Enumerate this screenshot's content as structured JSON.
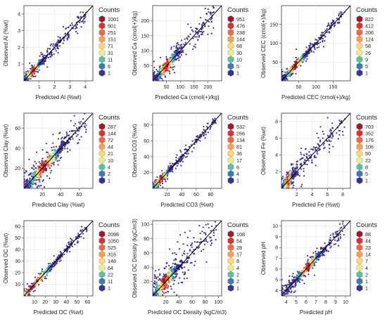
{
  "legend_title": "Counts",
  "colors": {
    "1": "#3d3290",
    "2": "#3a4fa6",
    "3": "#3b7bb7",
    "4": "#37a0b8",
    "5": "#5cc0a4",
    "6": "#a3d98c",
    "7": "#e6ee8e",
    "8": "#fbd96e",
    "9": "#f9a054",
    "10": "#ee6a43",
    "11": "#d8342f",
    "12": "#a5162e"
  },
  "chart_data": [
    {
      "type": "scatter",
      "xlabel": "Predicted Al (%wt)",
      "ylabel": "Observed Al (%wt)",
      "xlim": [
        0,
        4.5
      ],
      "ylim": [
        0,
        4.5
      ],
      "xticks": [
        "1",
        "2",
        "3",
        "4"
      ],
      "yticks": [
        "1",
        "2",
        "3",
        "4"
      ],
      "legend_counts": [
        "1001",
        "501",
        "251",
        "151",
        "71",
        "31",
        "11",
        "6",
        "1"
      ],
      "scatter_spread": 0.22,
      "cluster_center": 0.6,
      "cluster_width": 1.0
    },
    {
      "type": "scatter",
      "xlabel": "Predicted Ca (cmol(+)/kg)",
      "ylabel": "Observed Ca (cmol(+)/kg)",
      "xlim": [
        0,
        250
      ],
      "ylim": [
        0,
        250
      ],
      "xticks": [
        "50",
        "100",
        "150",
        "200"
      ],
      "yticks": [
        "50",
        "100",
        "150",
        "200"
      ],
      "legend_counts": [
        "951",
        "476",
        "238",
        "144",
        "68",
        "30",
        "10",
        "5",
        "1"
      ],
      "scatter_spread": 22,
      "cluster_center": 50,
      "cluster_width": 70
    },
    {
      "type": "scatter",
      "xlabel": "Predicted CEC (cmol(+)/kg)",
      "ylabel": "Observed CEC (cmol(+)/kg)",
      "xlim": [
        0,
        200
      ],
      "ylim": [
        0,
        200
      ],
      "xticks": [
        "50",
        "100",
        "150"
      ],
      "yticks": [
        "50",
        "100",
        "150"
      ],
      "legend_counts": [
        "822",
        "412",
        "206",
        "124",
        "58",
        "26",
        "9",
        "5",
        "1"
      ],
      "scatter_spread": 9,
      "cluster_center": 40,
      "cluster_width": 60
    },
    {
      "type": "scatter",
      "xlabel": "Predicted Clay (%wt)",
      "ylabel": "Observed Clay (%wt)",
      "xlim": [
        0,
        75
      ],
      "ylim": [
        0,
        75
      ],
      "xticks": [
        "20",
        "40",
        "60"
      ],
      "yticks": [
        "20",
        "40",
        "60"
      ],
      "legend_counts": [
        "287",
        "144",
        "72",
        "44",
        "21",
        "10",
        "4",
        "2",
        "1"
      ],
      "scatter_spread": 8,
      "cluster_center": 22,
      "cluster_width": 35
    },
    {
      "type": "scatter",
      "xlabel": "Predicted CO3 (%wt)",
      "ylabel": "Observed CO3 (%wt)",
      "xlim": [
        0,
        95
      ],
      "ylim": [
        0,
        95
      ],
      "xticks": [
        "20",
        "40",
        "60",
        "80"
      ],
      "yticks": [
        "20",
        "40",
        "60",
        "80"
      ],
      "legend_counts": [
        "532",
        "266",
        "134",
        "81",
        "36",
        "17",
        "6",
        "4",
        "1"
      ],
      "scatter_spread": 3.5,
      "cluster_center": 12,
      "cluster_width": 25
    },
    {
      "type": "scatter",
      "xlabel": "Predicted Fe (%wt)",
      "ylabel": "Observed Fe (%wt)",
      "xlim": [
        0,
        9
      ],
      "ylim": [
        0,
        9
      ],
      "xticks": [
        "2",
        "4",
        "6",
        "8"
      ],
      "yticks": [
        "2",
        "4",
        "6",
        "8"
      ],
      "legend_counts": [
        "703",
        "352",
        "176",
        "106",
        "50",
        "22",
        "8",
        "5",
        "1"
      ],
      "scatter_spread": 0.8,
      "cluster_center": 0.8,
      "cluster_width": 1.2
    },
    {
      "type": "scatter",
      "xlabel": "Predicted OC (%wt)",
      "ylabel": "Observed OC (%wt)",
      "xlim": [
        0,
        65
      ],
      "ylim": [
        0,
        65
      ],
      "xticks": [
        "10",
        "20",
        "30",
        "40",
        "50",
        "60"
      ],
      "yticks": [
        "10",
        "20",
        "30",
        "40",
        "50",
        "60"
      ],
      "legend_counts": [
        "2098",
        "1050",
        "525",
        "316",
        "148",
        "64",
        "22",
        "11",
        "1"
      ],
      "scatter_spread": 2.2,
      "cluster_center": 8,
      "cluster_width": 40
    },
    {
      "type": "scatter",
      "xlabel": "Predicted OC Density (kgC/m3)",
      "ylabel": "Observed OC Density (kgC/m3)",
      "xlim": [
        0,
        105
      ],
      "ylim": [
        0,
        105
      ],
      "xticks": [
        "20",
        "40",
        "60",
        "80",
        "100"
      ],
      "yticks": [
        "20",
        "40",
        "60",
        "80",
        "100"
      ],
      "legend_counts": [
        "108",
        "54",
        "28",
        "17",
        "8",
        "4",
        "2",
        "2",
        "1"
      ],
      "scatter_spread": 14,
      "cluster_center": 18,
      "cluster_width": 35
    },
    {
      "type": "scatter",
      "xlabel": "Predicted pH",
      "ylabel": "Observed pH",
      "xlim": [
        3.5,
        10.5
      ],
      "ylim": [
        3.5,
        10.5
      ],
      "xticks": [
        "4",
        "5",
        "6",
        "7",
        "8",
        "9",
        "10"
      ],
      "yticks": [
        "4",
        "5",
        "6",
        "7",
        "8",
        "9",
        "10"
      ],
      "legend_counts": [
        "88",
        "44",
        "23",
        "14",
        "7",
        "4",
        "2",
        "1",
        "1"
      ],
      "scatter_spread": 0.45,
      "cluster_center": 6.2,
      "cluster_width": 2.4
    }
  ]
}
